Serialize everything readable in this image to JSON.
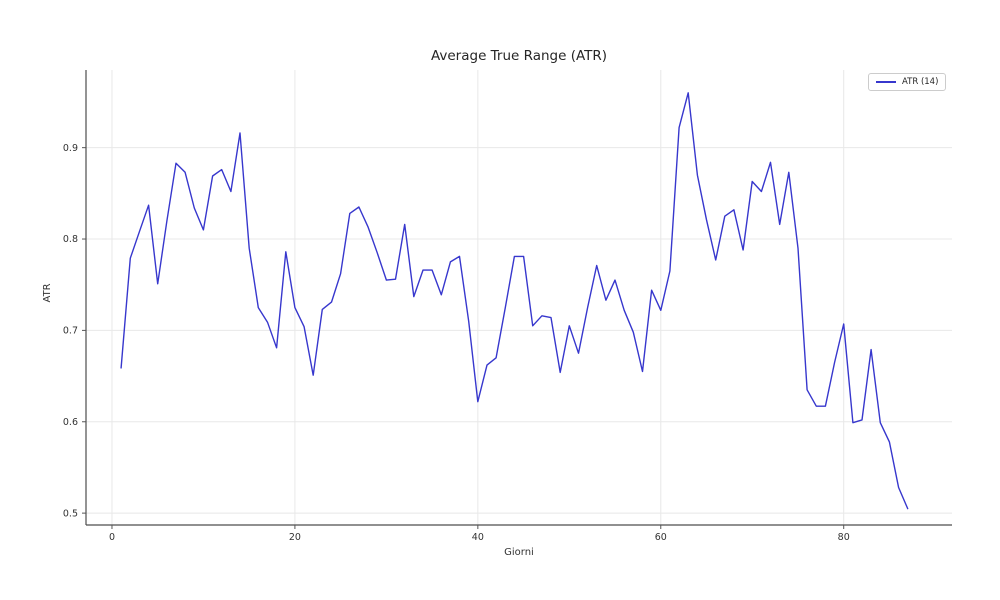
{
  "page": {
    "background": "#ffffff"
  },
  "chart_data": {
    "type": "line",
    "title": "Average True Range (ATR)",
    "xlabel": "Giorni",
    "ylabel": "ATR",
    "legend": {
      "position": "upper right",
      "entries": [
        {
          "label": "ATR (14)",
          "color": "#3737cd"
        }
      ]
    },
    "x": [
      1,
      2,
      3,
      4,
      5,
      6,
      7,
      8,
      9,
      10,
      11,
      12,
      13,
      14,
      15,
      16,
      17,
      18,
      19,
      20,
      21,
      22,
      23,
      24,
      25,
      26,
      27,
      28,
      29,
      30,
      31,
      32,
      33,
      34,
      35,
      36,
      37,
      38,
      39,
      40,
      41,
      42,
      43,
      44,
      45,
      46,
      47,
      48,
      49,
      50,
      51,
      52,
      53,
      54,
      55,
      56,
      57,
      58,
      59,
      60,
      61,
      62,
      63,
      64,
      65,
      66,
      67,
      68,
      69,
      70,
      71,
      72,
      73,
      74,
      75,
      76,
      77,
      78,
      79,
      80,
      81,
      82,
      83,
      84,
      85,
      86,
      87
    ],
    "series": [
      {
        "name": "ATR (14)",
        "color": "#3737cd",
        "values": [
          0.659,
          0.779,
          0.808,
          0.837,
          0.751,
          0.82,
          0.883,
          0.873,
          0.834,
          0.81,
          0.869,
          0.876,
          0.852,
          0.916,
          0.79,
          0.725,
          0.709,
          0.681,
          0.786,
          0.725,
          0.704,
          0.651,
          0.723,
          0.731,
          0.762,
          0.828,
          0.835,
          0.813,
          0.785,
          0.755,
          0.756,
          0.816,
          0.737,
          0.766,
          0.766,
          0.739,
          0.775,
          0.781,
          0.71,
          0.622,
          0.662,
          0.67,
          0.725,
          0.781,
          0.781,
          0.705,
          0.716,
          0.714,
          0.654,
          0.705,
          0.675,
          0.725,
          0.771,
          0.733,
          0.755,
          0.722,
          0.698,
          0.655,
          0.744,
          0.722,
          0.765,
          0.922,
          0.96,
          0.87,
          0.821,
          0.777,
          0.825,
          0.832,
          0.788,
          0.863,
          0.852,
          0.884,
          0.816,
          0.873,
          0.79,
          0.635,
          0.617,
          0.617,
          0.665,
          0.707,
          0.599,
          0.602,
          0.679,
          0.599,
          0.578,
          0.528,
          0.505
        ]
      }
    ],
    "xticks": {
      "values": [
        0,
        20,
        40,
        60,
        80
      ],
      "labels": [
        "0",
        "20",
        "40",
        "60",
        "80"
      ]
    },
    "yticks": {
      "values": [
        0.5,
        0.6,
        0.7,
        0.8,
        0.9
      ],
      "labels": [
        "0.5",
        "0.6",
        "0.7",
        "0.8",
        "0.9"
      ]
    },
    "xlim": [
      -2.84,
      91.84
    ],
    "ylim": [
      0.487,
      0.985
    ],
    "grid": true,
    "grid_color": "#e8e8e8",
    "spine_color": "#4d4d4d",
    "tick_color": "#555555",
    "tick_label_color": "#333333",
    "text_color": "#262626",
    "line_width": 1.4
  }
}
